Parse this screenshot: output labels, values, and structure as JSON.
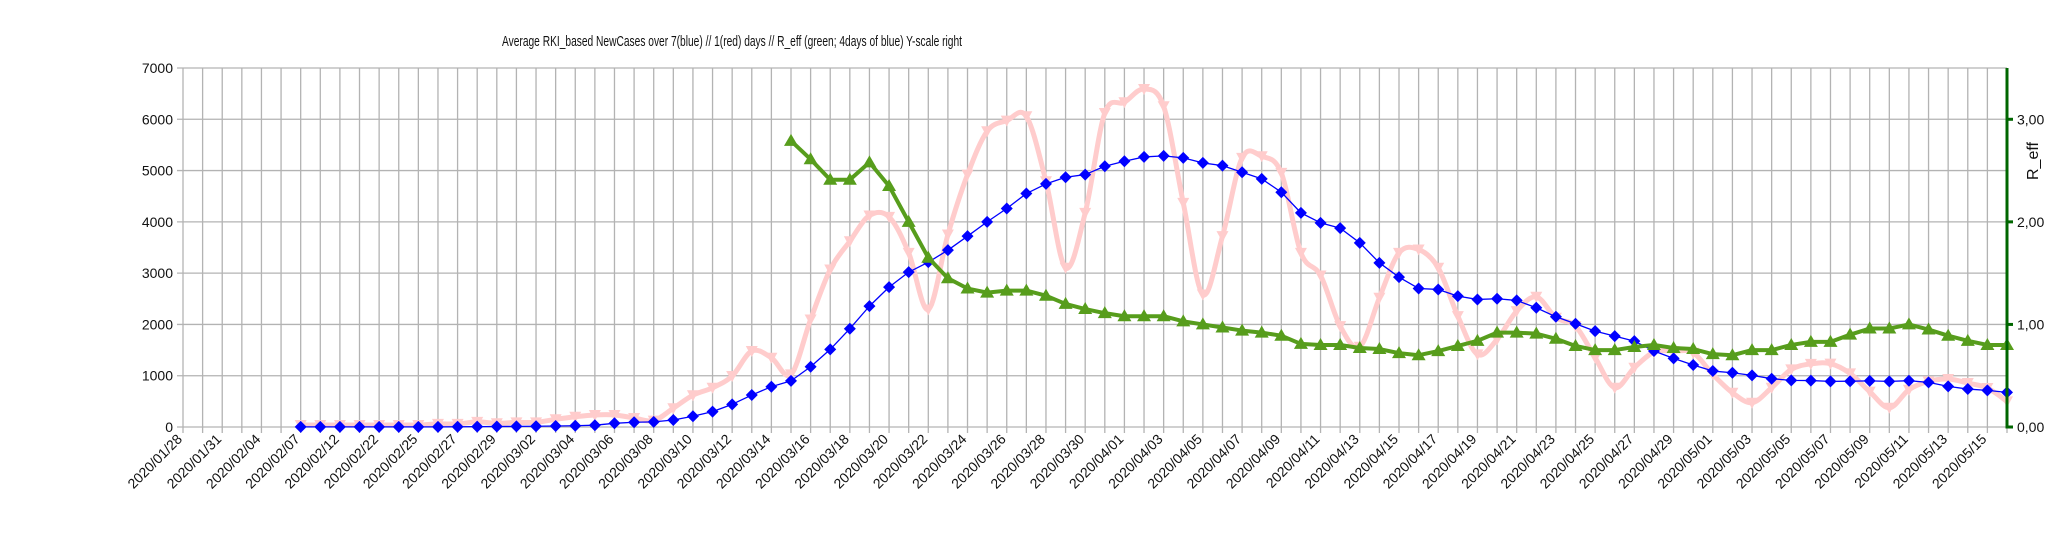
{
  "chart_data": {
    "type": "line",
    "title": "Average RKI_based NewCases over 7(blue) // 1(red) days //  R_eff (green; 4days of blue) Y-scale right",
    "xlabel": "",
    "ylabel": "",
    "y2label": "R_eff",
    "ylim": [
      0,
      7000
    ],
    "y2lim": [
      0,
      3.5
    ],
    "yticks": [
      "0",
      "1000",
      "2000",
      "3000",
      "4000",
      "5000",
      "6000",
      "7000"
    ],
    "y2ticks": [
      "0,00",
      "1,00",
      "2,00",
      "3,00"
    ],
    "grid": true,
    "colors": {
      "blue": "#0000ff",
      "red": "#ffcccc",
      "green": "#579d1c",
      "right_axis": "#006600"
    },
    "categories": [
      "2020/01/28",
      "",
      "2020/01/31",
      "",
      "2020/02/04",
      "",
      "2020/02/07",
      "",
      "2020/02/12",
      "",
      "2020/02/22",
      "",
      "2020/02/25",
      "",
      "2020/02/27",
      "",
      "2020/02/29",
      "",
      "2020/03/02",
      "",
      "2020/03/04",
      "",
      "2020/03/06",
      "",
      "2020/03/08",
      "",
      "2020/03/10",
      "",
      "2020/03/12",
      "",
      "2020/03/14",
      "",
      "2020/03/16",
      "",
      "2020/03/18",
      "",
      "2020/03/20",
      "",
      "2020/03/22",
      "",
      "2020/03/24",
      "",
      "2020/03/26",
      "",
      "2020/03/28",
      "",
      "2020/03/30",
      "",
      "2020/04/01",
      "",
      "2020/04/03",
      "",
      "2020/04/05",
      "",
      "2020/04/07",
      "",
      "2020/04/09",
      "",
      "2020/04/11",
      "",
      "2020/04/13",
      "",
      "2020/04/15",
      "",
      "2020/04/17",
      "",
      "2020/04/19",
      "",
      "2020/04/21",
      "",
      "2020/04/23",
      "",
      "2020/04/25",
      "",
      "2020/04/27",
      "",
      "2020/04/29",
      "",
      "2020/05/01",
      "",
      "2020/05/03",
      "",
      "2020/05/05",
      "",
      "2020/05/07",
      "",
      "2020/05/09",
      "",
      "2020/05/11",
      "",
      "2020/05/13",
      "",
      "2020/05/15",
      ""
    ],
    "series": [
      {
        "key": "blue",
        "axis": "left",
        "marker": "diamond",
        "values": [
          null,
          null,
          null,
          null,
          null,
          null,
          2,
          2,
          2,
          2,
          2,
          2,
          2,
          3,
          5,
          8,
          10,
          12,
          15,
          20,
          25,
          35,
          72,
          92,
          100,
          137,
          210,
          300,
          442,
          623,
          786,
          900,
          1175,
          1513,
          1916,
          2357,
          2727,
          3019,
          3214,
          3448,
          3721,
          4000,
          4260,
          4552,
          4740,
          4870,
          4922,
          5084,
          5182,
          5266,
          5286,
          5247,
          5149,
          5097,
          4968,
          4838,
          4578,
          4175,
          3981,
          3877,
          3591,
          3201,
          2922,
          2701,
          2682,
          2552,
          2487,
          2500,
          2468,
          2325,
          2149,
          2013,
          1870,
          1773,
          1675,
          1481,
          1338,
          1208,
          1091,
          1058,
          1006,
          942,
          909,
          905,
          890,
          893,
          900,
          890,
          903,
          870,
          792,
          740,
          714,
          675
        ]
      },
      {
        "key": "red",
        "axis": "left",
        "marker": "triangle-down",
        "smooth": true,
        "values": [
          null,
          null,
          null,
          null,
          null,
          null,
          40,
          40,
          40,
          40,
          40,
          40,
          40,
          60,
          60,
          100,
          72,
          90,
          90,
          150,
          200,
          235,
          235,
          176,
          124,
          366,
          620,
          766,
          994,
          1481,
          1351,
          1026,
          2097,
          3071,
          3623,
          4123,
          4097,
          3396,
          2292,
          3753,
          4922,
          5766,
          5974,
          6058,
          4792,
          3104,
          4175,
          6123,
          6331,
          6591,
          6253,
          4370,
          2584,
          3721,
          5247,
          5279,
          4955,
          3396,
          2955,
          1968,
          1565,
          2519,
          3396,
          3461,
          3104,
          2162,
          1416,
          1708,
          2260,
          2539,
          2130,
          1968,
          1351,
          766,
          1156,
          1461,
          1481,
          1448,
          1026,
          669,
          474,
          766,
          1123,
          1230,
          1235,
          1045,
          690,
          375,
          727,
          890,
          935,
          857,
          760,
          500
        ]
      },
      {
        "key": "green",
        "axis": "right",
        "marker": "triangle-up",
        "values": [
          null,
          null,
          null,
          null,
          null,
          null,
          null,
          null,
          null,
          null,
          null,
          null,
          null,
          null,
          null,
          null,
          null,
          null,
          null,
          null,
          null,
          null,
          null,
          null,
          null,
          null,
          null,
          null,
          null,
          null,
          null,
          2.79,
          2.61,
          2.41,
          2.41,
          2.58,
          2.35,
          2.0,
          1.65,
          1.45,
          1.35,
          1.31,
          1.33,
          1.33,
          1.28,
          1.2,
          1.15,
          1.11,
          1.08,
          1.08,
          1.08,
          1.03,
          1.0,
          0.97,
          0.94,
          0.92,
          0.89,
          0.81,
          0.8,
          0.8,
          0.77,
          0.76,
          0.72,
          0.7,
          0.74,
          0.79,
          0.84,
          0.92,
          0.92,
          0.91,
          0.86,
          0.79,
          0.75,
          0.75,
          0.78,
          0.8,
          0.77,
          0.76,
          0.71,
          0.7,
          0.75,
          0.75,
          0.8,
          0.83,
          0.83,
          0.9,
          0.96,
          0.96,
          1.0,
          0.95,
          0.89,
          0.84,
          0.8,
          0.8
        ]
      }
    ]
  }
}
